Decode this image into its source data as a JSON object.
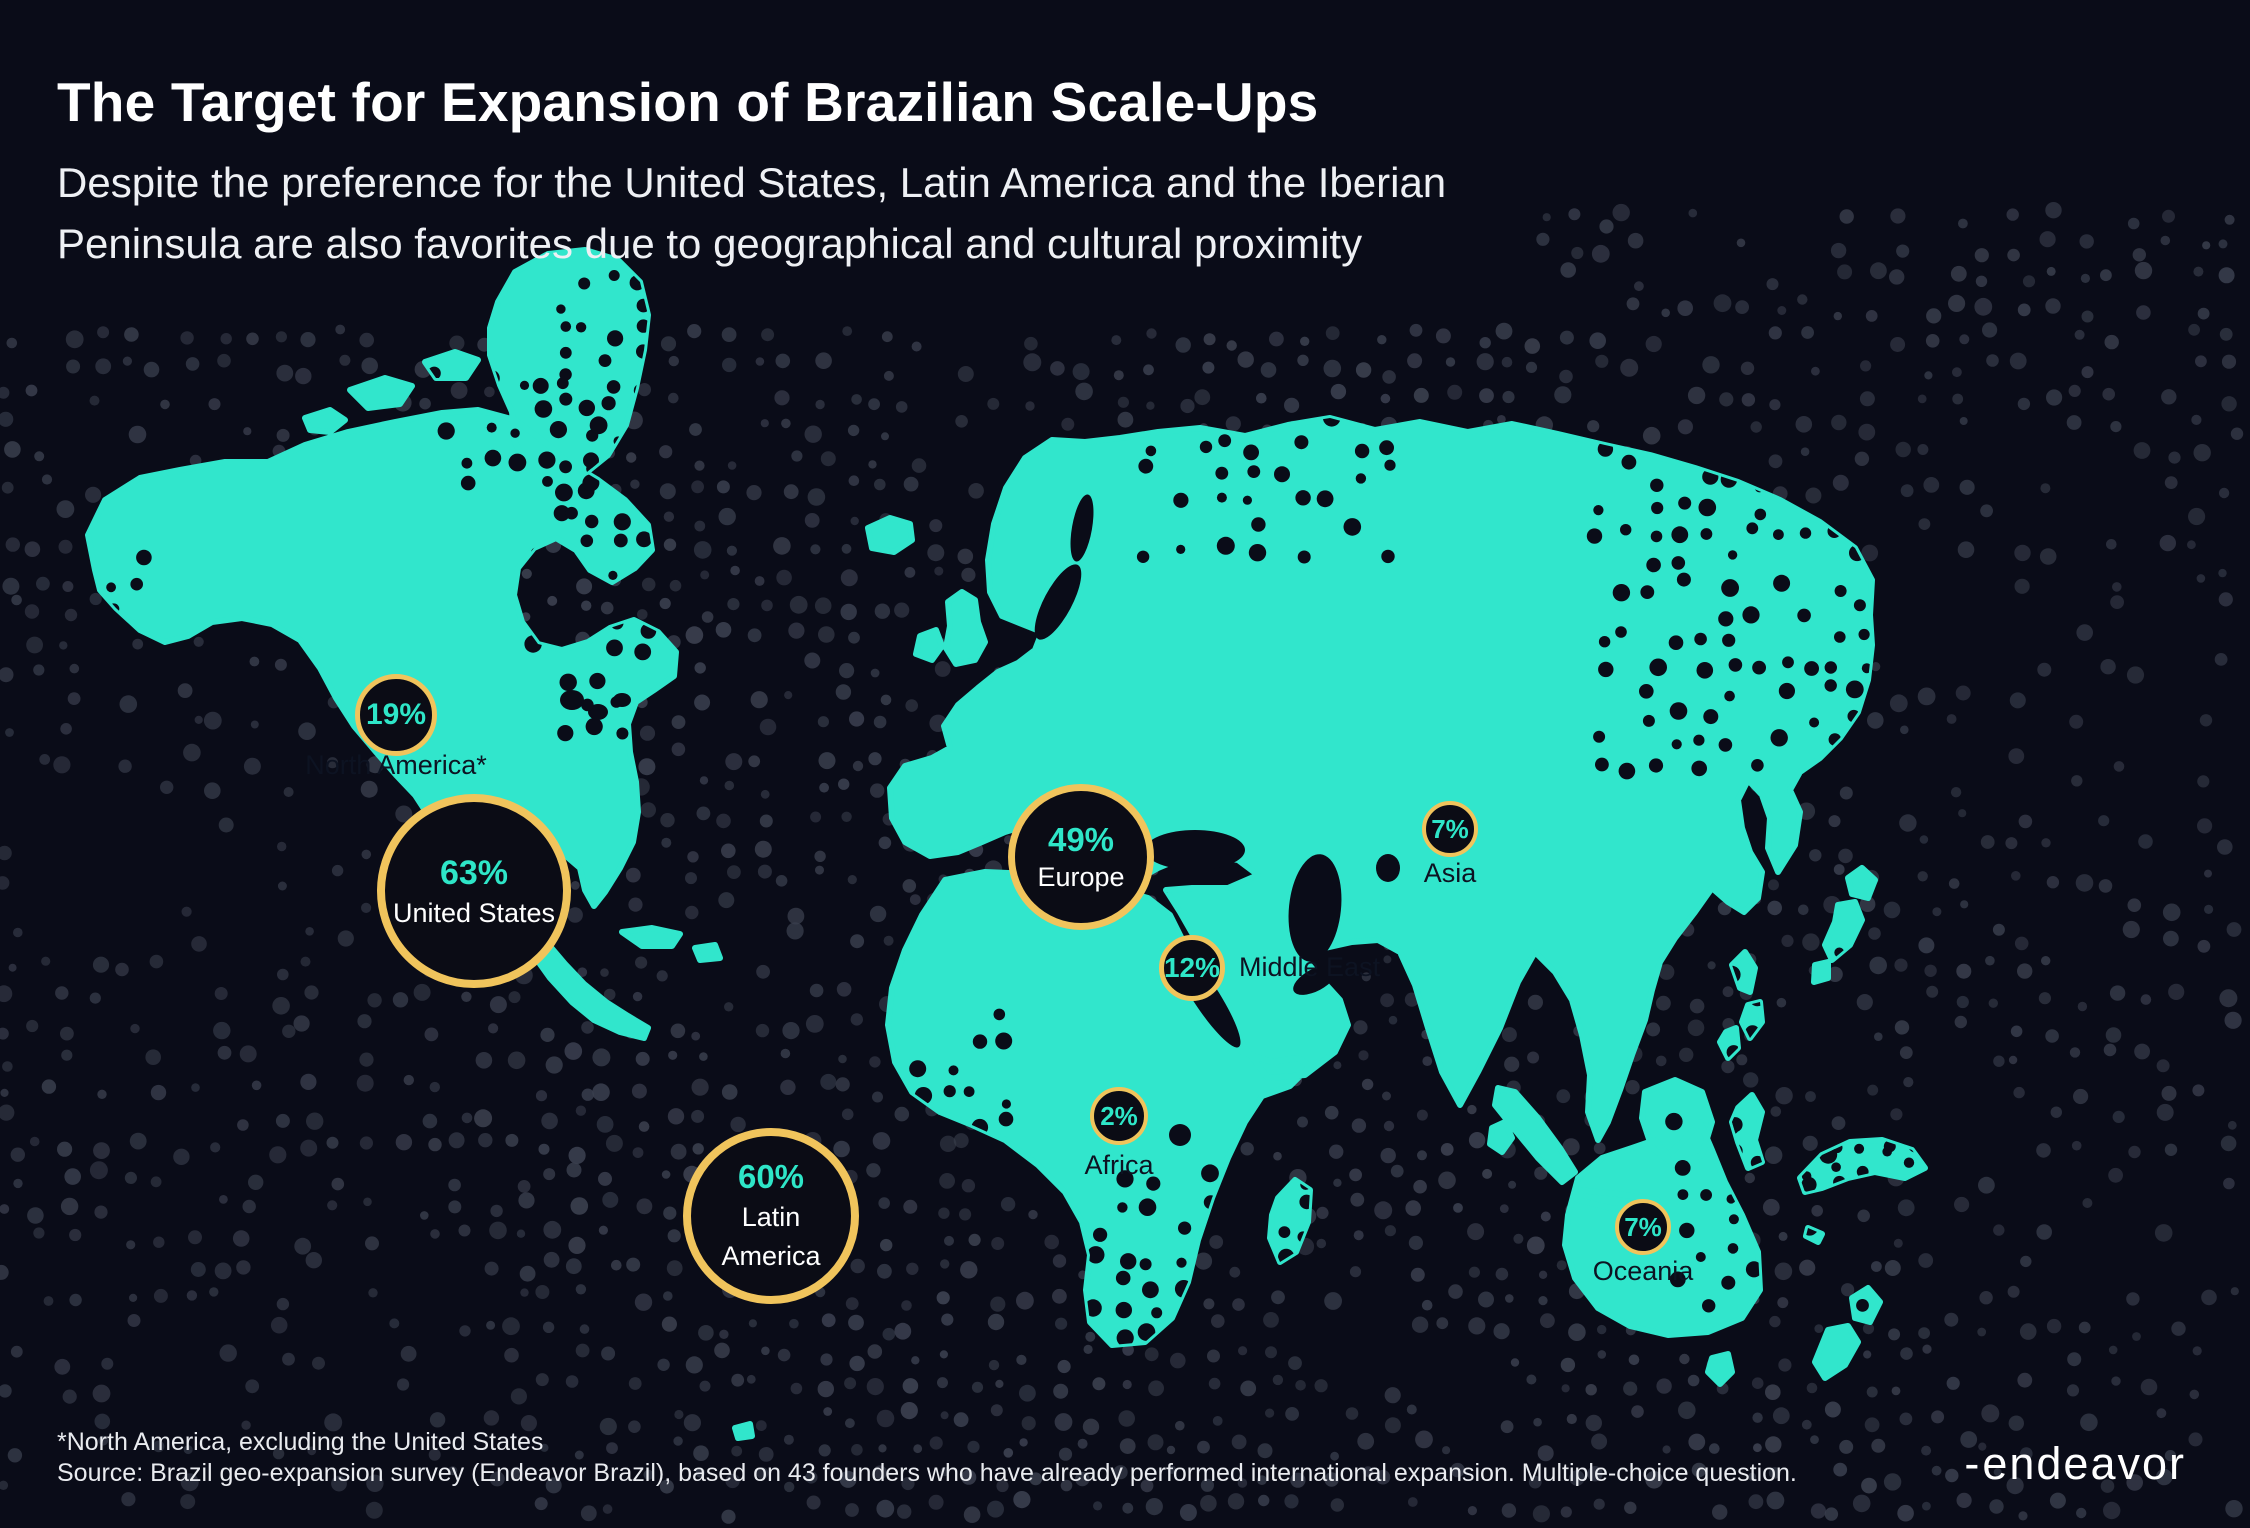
{
  "header": {
    "title": "The Target for Expansion of Brazilian Scale-Ups",
    "subtitle_lines": [
      "Despite the preference for the United States, Latin America and the Iberian",
      "Peninsula are also favorites due to geographical and cultural proximity"
    ]
  },
  "bubbles": {
    "north_america": {
      "value": "19%",
      "label": "North America*"
    },
    "united_states": {
      "value": "63%",
      "label": "United States"
    },
    "latin_america": {
      "value": "60%",
      "label_line1": "Latin",
      "label_line2": "America"
    },
    "europe": {
      "value": "49%",
      "label": "Europe"
    },
    "middle_east": {
      "value": "12%",
      "label": "Middle East"
    },
    "africa": {
      "value": "2%",
      "label": "Africa"
    },
    "asia": {
      "value": "7%",
      "label": "Asia"
    },
    "oceania": {
      "value": "7%",
      "label": "Oceania"
    }
  },
  "footer": {
    "footnote": "*North America, excluding the United States",
    "source": "Source: Brazil geo-expansion survey (Endeavor Brazil), based on 43 founders who have already performed international expansion. Multiple-choice question.",
    "logo_dash": "-",
    "logo_text": "endeavor"
  },
  "colors": {
    "background": "#0a0c18",
    "land": "#31e6cc",
    "accent_gold": "#f0c45c",
    "accent_teal": "#2ee6c8",
    "bubble_fill": "#0b0c15",
    "dot_gray": "#3a3f4e",
    "label_dark": "#0d1322",
    "text_white": "#ffffff"
  },
  "chart_data": {
    "type": "bubble-map",
    "title": "The Target for Expansion of Brazilian Scale-Ups",
    "unit": "%",
    "regions": [
      {
        "name": "United States",
        "value": 63
      },
      {
        "name": "Latin America",
        "value": 60
      },
      {
        "name": "Europe",
        "value": 49
      },
      {
        "name": "North America (excluding the United States)",
        "value": 19
      },
      {
        "name": "Middle East",
        "value": 12
      },
      {
        "name": "Asia",
        "value": 7
      },
      {
        "name": "Oceania",
        "value": 7
      },
      {
        "name": "Africa",
        "value": 2
      }
    ],
    "legend_position": "none",
    "basemap": "world"
  }
}
